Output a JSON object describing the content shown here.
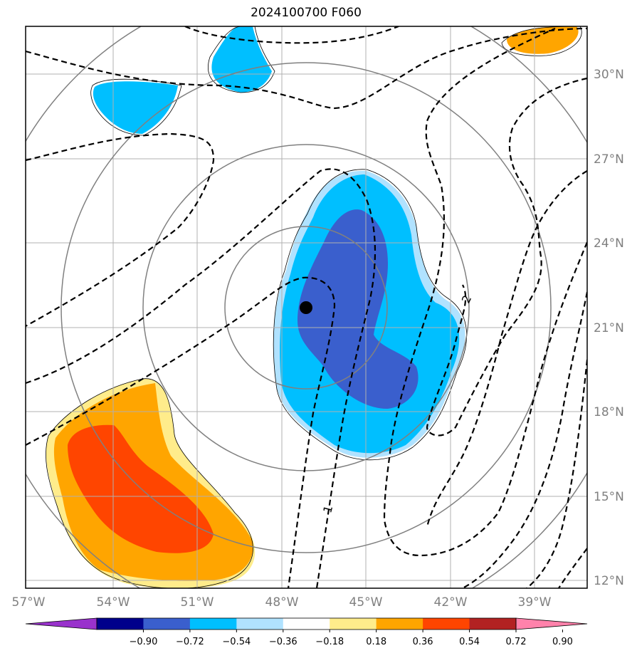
{
  "title": "2024100700 F060",
  "map": {
    "lat_labels": [
      "30°N",
      "27°N",
      "24°N",
      "21°N",
      "18°N",
      "15°N",
      "12°N"
    ],
    "lon_labels": [
      "57°W",
      "54°W",
      "51°W",
      "48°W",
      "45°W",
      "42°W",
      "39°W"
    ],
    "contour_labels": [
      "1",
      "2"
    ],
    "center_marker": "storm-center-dot"
  },
  "colorbar": {
    "tick_labels": [
      "−0.90",
      "−0.72",
      "−0.54",
      "−0.36",
      "−0.18",
      "0.18",
      "0.36",
      "0.54",
      "0.72",
      "0.90"
    ],
    "colors": [
      "#9932cc",
      "#00008b",
      "#3a5fcd",
      "#00bfff",
      "#b0e2ff",
      "#ffffff",
      "#ffec8b",
      "#ffa500",
      "#ff4500",
      "#b22222",
      "#ff82ab"
    ]
  }
}
